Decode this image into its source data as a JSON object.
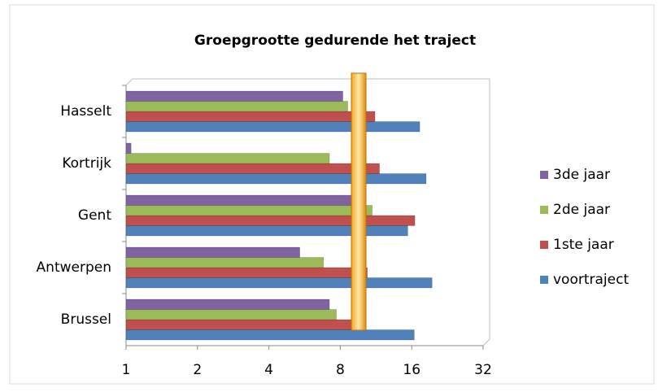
{
  "chart_data": {
    "type": "bar",
    "orientation": "horizontal",
    "title": "Groepgrootte gedurende het traject",
    "categories": [
      "Brussel",
      "Antwerpen",
      "Gent",
      "Kortrijk",
      "Hasselt"
    ],
    "series": [
      {
        "name": "voortraject",
        "color": "#4f81bd",
        "values": [
          16.4,
          19.5,
          15.4,
          18.4,
          17.3
        ]
      },
      {
        "name": "1ste jaar",
        "color": "#c0504d",
        "values": [
          9,
          10.4,
          16.5,
          11.7,
          11.2
        ]
      },
      {
        "name": "2de jaar",
        "color": "#9bbb59",
        "values": [
          7.7,
          6.8,
          10.9,
          7.2,
          8.6
        ]
      },
      {
        "name": "3de jaar",
        "color": "#8064a2",
        "values": [
          7.2,
          5.4,
          9,
          1.05,
          8.2
        ]
      }
    ],
    "xlim": [
      1,
      32
    ],
    "xticks": [
      1,
      2,
      4,
      8,
      16,
      32
    ],
    "xscale": "log",
    "log_base": 2,
    "grid": false,
    "legend": "right"
  }
}
